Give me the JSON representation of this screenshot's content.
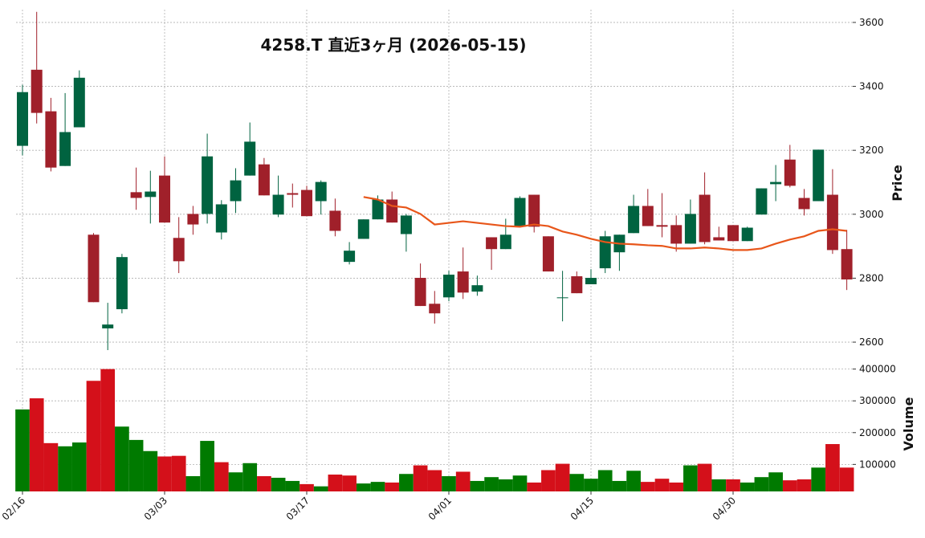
{
  "chart_data": {
    "type": "candlestick",
    "title": "4258.T  直近3ヶ月  (2026-05-15)",
    "categories": [
      "02/16",
      null,
      null,
      null,
      null,
      null,
      null,
      null,
      null,
      null,
      "03/03",
      null,
      null,
      null,
      null,
      null,
      null,
      null,
      null,
      null,
      "03/17",
      null,
      null,
      null,
      null,
      null,
      null,
      null,
      null,
      null,
      "04/01",
      null,
      null,
      null,
      null,
      null,
      null,
      null,
      null,
      null,
      "04/15",
      null,
      null,
      null,
      null,
      null,
      null,
      null,
      null,
      null,
      "04/30",
      null,
      null,
      null,
      null,
      null,
      null,
      null,
      null
    ],
    "open": [
      3214,
      3452,
      3322,
      3151,
      3272,
      2936,
      2643,
      2703,
      3069,
      3054,
      3121,
      2926,
      3001,
      3001,
      2943,
      3041,
      3121,
      3156,
      2999,
      3066,
      3076,
      3041,
      3011,
      2851,
      2923,
      2984,
      3046,
      2938,
      2801,
      2720,
      2740,
      2821,
      2758,
      2928,
      2891,
      2961,
      3061,
      2931,
      2738,
      2806,
      2781,
      2831,
      2881,
      2941,
      3026,
      2966,
      2966,
      2908,
      3061,
      2928,
      2966,
      2916,
      2999,
      3094,
      3171,
      3051,
      3041,
      3061,
      2891
    ],
    "high": [
      3405,
      3633,
      3364,
      3379,
      3450,
      2941,
      2723,
      2876,
      3146,
      3136,
      3181,
      2991,
      3026,
      3252,
      3044,
      3144,
      3287,
      3176,
      3121,
      3096,
      3089,
      3106,
      3049,
      2913,
      2984,
      3059,
      3071,
      3001,
      2846,
      2760,
      2823,
      2896,
      2808,
      2928,
      2986,
      3056,
      3061,
      2931,
      2823,
      2821,
      2828,
      2948,
      2936,
      3061,
      3079,
      3066,
      2996,
      3046,
      3131,
      2961,
      2966,
      2961,
      3081,
      3154,
      3217,
      3079,
      3202,
      3141,
      2951
    ],
    "low": [
      3184,
      3284,
      3134,
      3151,
      3272,
      2725,
      2575,
      2690,
      3014,
      2971,
      2974,
      2816,
      2936,
      2971,
      2921,
      3004,
      3121,
      3059,
      2991,
      3021,
      2994,
      2999,
      2931,
      2843,
      2923,
      2984,
      2974,
      2883,
      2713,
      2658,
      2728,
      2735,
      2745,
      2826,
      2891,
      2961,
      2943,
      2821,
      2665,
      2753,
      2781,
      2816,
      2823,
      2941,
      2963,
      2928,
      2883,
      2908,
      2906,
      2918,
      2916,
      2916,
      2999,
      3041,
      3084,
      2996,
      3041,
      2876,
      2763
    ],
    "close": [
      3382,
      3317,
      3146,
      3257,
      3427,
      2725,
      2655,
      2866,
      3051,
      3071,
      2974,
      2853,
      2968,
      3181,
      3031,
      3106,
      3227,
      3059,
      3061,
      3061,
      2994,
      3101,
      2948,
      2886,
      2984,
      3046,
      2974,
      2996,
      2713,
      2690,
      2811,
      2755,
      2778,
      2891,
      2936,
      3051,
      2961,
      2821,
      2740,
      2753,
      2801,
      2931,
      2936,
      3026,
      2963,
      2961,
      2908,
      3001,
      2913,
      2918,
      2916,
      2958,
      3081,
      3101,
      3089,
      3016,
      3202,
      2888,
      2796
    ],
    "up_color": "#006340",
    "down_color": "#a0202a",
    "ylabel": "Price",
    "ylim": [
      2565,
      3640
    ],
    "yticks": [
      2600,
      2800,
      3000,
      3200,
      3400,
      3600
    ],
    "grid": true,
    "moving_average": {
      "color": "#e8561a",
      "values": [
        null,
        null,
        null,
        null,
        null,
        null,
        null,
        null,
        null,
        null,
        null,
        null,
        null,
        null,
        null,
        null,
        null,
        null,
        null,
        null,
        null,
        null,
        null,
        null,
        3054,
        3046,
        3026,
        3021,
        3001,
        2968,
        2973,
        2978,
        2973,
        2968,
        2963,
        2961,
        2968,
        2963,
        2946,
        2936,
        2923,
        2913,
        2908,
        2906,
        2903,
        2901,
        2893,
        2893,
        2896,
        2893,
        2888,
        2888,
        2893,
        2908,
        2921,
        2931,
        2948,
        2953,
        2948
      ]
    },
    "volume": {
      "ylabel": "Volume",
      "values": [
        273000,
        308000,
        167000,
        157000,
        169000,
        363000,
        400000,
        219000,
        177000,
        142000,
        125000,
        127000,
        63000,
        174000,
        107000,
        75000,
        104000,
        63000,
        58000,
        48000,
        38000,
        31000,
        68000,
        65000,
        40000,
        45000,
        43000,
        70000,
        97000,
        82000,
        63000,
        77000,
        48000,
        60000,
        53000,
        65000,
        43000,
        82000,
        102000,
        70000,
        55000,
        82000,
        48000,
        80000,
        45000,
        55000,
        43000,
        97000,
        102000,
        53000,
        53000,
        43000,
        60000,
        75000,
        50000,
        53000,
        90000,
        164000,
        90000
      ],
      "ylim": [
        15000,
        442000
      ],
      "yticks": [
        100000,
        200000,
        300000,
        400000
      ],
      "up_color": "#007a00",
      "down_color": "#d4101a"
    }
  }
}
